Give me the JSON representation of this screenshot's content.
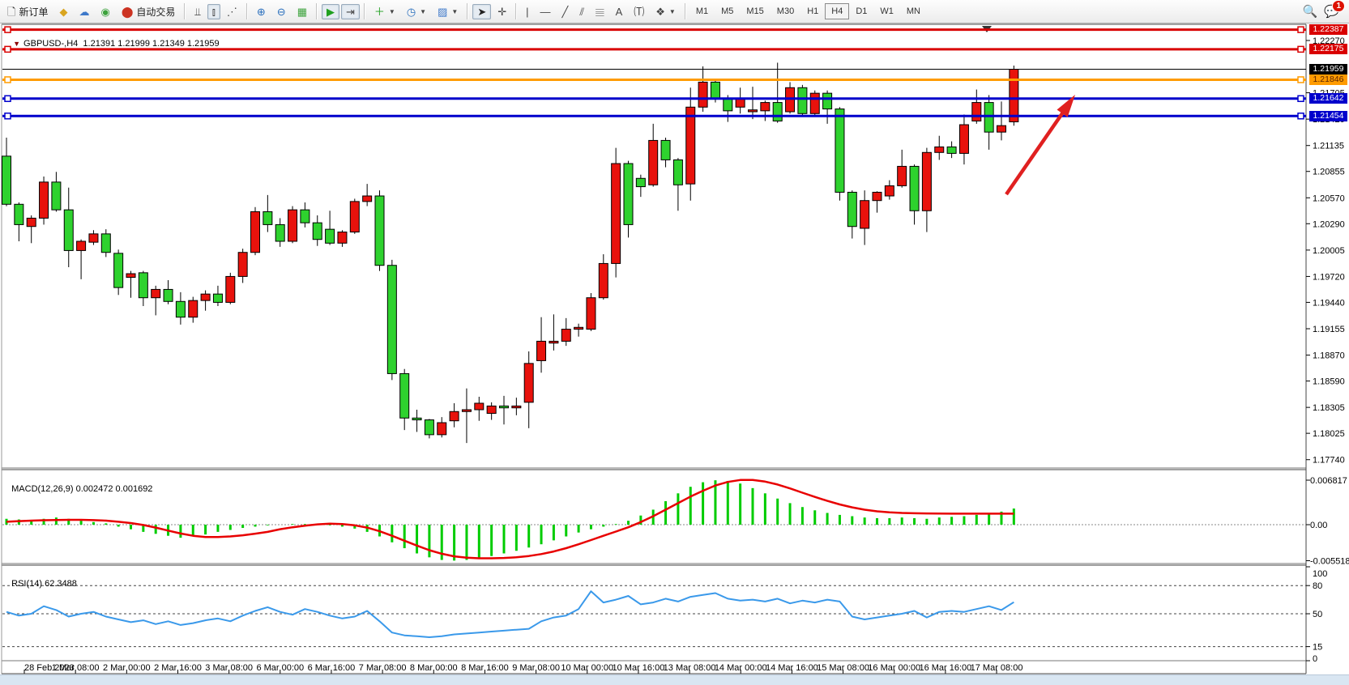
{
  "toolbar": {
    "new_order_label": "新订单",
    "auto_trading_label": "自动交易",
    "buttons": [
      {
        "name": "new-order-button",
        "icon": "order-ticket-icon",
        "label": "新订单"
      },
      {
        "name": "gold-button",
        "icon": "gold-nugget-icon"
      },
      {
        "name": "contacts-button",
        "icon": "contacts-icon"
      },
      {
        "name": "signal-button",
        "icon": "signal-icon"
      },
      {
        "name": "auto-trading-button",
        "icon": "autotrade-icon",
        "label": "自动交易"
      },
      {
        "sep": true
      },
      {
        "name": "bar-chart-button",
        "icon": "bar-chart-icon"
      },
      {
        "name": "candlestick-chart-button",
        "icon": "candlestick-chart-icon",
        "pressed": true
      },
      {
        "name": "line-chart-button",
        "icon": "line-chart-icon"
      },
      {
        "sep": true
      },
      {
        "name": "zoom-in-button",
        "icon": "zoom-in-icon"
      },
      {
        "name": "zoom-out-button",
        "icon": "zoom-out-icon"
      },
      {
        "name": "tile-windows-button",
        "icon": "tile-windows-icon"
      },
      {
        "sep": true
      },
      {
        "name": "auto-scroll-button",
        "icon": "auto-scroll-icon",
        "pressed": true
      },
      {
        "name": "chart-shift-button",
        "icon": "chart-shift-icon",
        "pressed": true
      },
      {
        "sep": true
      },
      {
        "name": "indicators-button",
        "icon": "indicator-add-icon",
        "caret": true
      },
      {
        "name": "periods-button",
        "icon": "clock-icon",
        "caret": true
      },
      {
        "name": "templates-button",
        "icon": "template-icon",
        "caret": true
      },
      {
        "sep": true
      },
      {
        "name": "cursor-button",
        "icon": "cursor-icon",
        "pressed": true
      },
      {
        "name": "crosshair-button",
        "icon": "crosshair-icon"
      },
      {
        "sep": true
      },
      {
        "name": "vertical-line-button",
        "icon": "vertical-line-icon"
      },
      {
        "name": "horizontal-line-button",
        "icon": "horizontal-line-icon"
      },
      {
        "name": "trendline-button",
        "icon": "trendline-icon"
      },
      {
        "name": "equidistant-channel-button",
        "icon": "channel-icon"
      },
      {
        "name": "fibonacci-button",
        "icon": "fibonacci-icon"
      },
      {
        "name": "text-button",
        "icon": "text-icon"
      },
      {
        "name": "text-label-button",
        "icon": "text-label-icon"
      },
      {
        "name": "arrows-button",
        "icon": "shapes-icon",
        "caret": true
      },
      {
        "sep": true
      }
    ],
    "timeframes": [
      "M1",
      "M5",
      "M15",
      "M30",
      "H1",
      "H4",
      "D1",
      "W1",
      "MN"
    ],
    "timeframe_selected": "H4",
    "notification_count": "1"
  },
  "chart": {
    "symbol_period": "GBPUSD-,H4",
    "ohlc_text": "1.21391 1.21999 1.21349 1.21959",
    "macd_name": "MACD(12,26,9)",
    "macd_values": "0.002472 0.001692",
    "rsi_name": "RSI(14)",
    "rsi_value": "62.3488"
  },
  "price_axis": {
    "ticks": [
      "1.22270",
      "1.21705",
      "1.21420",
      "1.21135",
      "1.20855",
      "1.20570",
      "1.20290",
      "1.20005",
      "1.19720",
      "1.19440",
      "1.19155",
      "1.18870",
      "1.18590",
      "1.18305",
      "1.18025",
      "1.17740"
    ],
    "badges": [
      {
        "label": "1.22387",
        "price": 1.22387,
        "bg": "#d90000",
        "fg": "#ffffff"
      },
      {
        "label": "1.22175",
        "price": 1.22175,
        "bg": "#d90000",
        "fg": "#ffffff"
      },
      {
        "label": "1.21959",
        "price": 1.21959,
        "bg": "#000000",
        "fg": "#ffffff"
      },
      {
        "label": "1.21846",
        "price": 1.21846,
        "bg": "#ff9b00",
        "fg": "#5a2400"
      },
      {
        "label": "1.21642",
        "price": 1.21642,
        "bg": "#0000cc",
        "fg": "#ffffff"
      },
      {
        "label": "1.21454",
        "price": 1.21454,
        "bg": "#0000cc",
        "fg": "#ffffff"
      }
    ]
  },
  "macd_axis": {
    "ticks": [
      {
        "label": "0.006817",
        "v": 0.006817
      },
      {
        "label": "0.00",
        "v": 0.0
      },
      {
        "label": "-0.005518",
        "v": -0.005518
      }
    ]
  },
  "rsi_axis": {
    "ticks": [
      {
        "label": "100",
        "v": 100
      },
      {
        "label": "80",
        "v": 80
      },
      {
        "label": "50",
        "v": 50
      },
      {
        "label": "15",
        "v": 15
      },
      {
        "label": "0",
        "v": 0
      }
    ],
    "levels": [
      80,
      50,
      15
    ]
  },
  "time_axis": [
    "28 Feb 2023",
    "1 Mar 08:00",
    "2 Mar 00:00",
    "2 Mar 16:00",
    "3 Mar 08:00",
    "6 Mar 00:00",
    "6 Mar 16:00",
    "7 Mar 08:00",
    "8 Mar 00:00",
    "8 Mar 16:00",
    "9 Mar 08:00",
    "10 Mar 00:00",
    "10 Mar 16:00",
    "13 Mar 08:00",
    "14 Mar 00:00",
    "14 Mar 16:00",
    "15 Mar 08:00",
    "16 Mar 00:00",
    "16 Mar 16:00",
    "17 Mar 08:00"
  ],
  "colors": {
    "bull": "#e8120c",
    "bear": "#2ed22e",
    "wick": "#000000",
    "red_line": "#d90000",
    "orange_line": "#ff9b00",
    "blue_line": "#0000cc",
    "bid_line": "#000000",
    "macd_hist": "#00cc00",
    "macd_signal": "#e80000",
    "rsi_line": "#3a99ea",
    "arrow": "#e02020"
  },
  "chart_data": {
    "type": "candlestick",
    "symbol": "GBPUSD-",
    "period": "H4",
    "ylim": [
      1.1774,
      1.2239
    ],
    "grid": false,
    "candles": [
      [
        1.2102,
        1.2122,
        1.2048,
        1.205
      ],
      [
        1.205,
        1.2052,
        1.201,
        1.2028
      ],
      [
        1.2026,
        1.2038,
        1.2008,
        1.2035
      ],
      [
        1.2035,
        1.208,
        1.2028,
        1.2074
      ],
      [
        1.2074,
        1.2085,
        1.2042,
        1.2044
      ],
      [
        1.2044,
        1.2068,
        1.1982,
        1.2
      ],
      [
        1.2,
        1.2012,
        1.1969,
        1.201
      ],
      [
        1.2009,
        1.2022,
        1.2006,
        1.2018
      ],
      [
        1.2018,
        1.2023,
        1.1993,
        1.1998
      ],
      [
        1.1997,
        1.2001,
        1.1952,
        1.196
      ],
      [
        1.1971,
        1.1978,
        1.1949,
        1.1975
      ],
      [
        1.1976,
        1.1978,
        1.194,
        1.1949
      ],
      [
        1.1949,
        1.1962,
        1.193,
        1.1958
      ],
      [
        1.1958,
        1.1968,
        1.1942,
        1.1945
      ],
      [
        1.1945,
        1.1955,
        1.192,
        1.1928
      ],
      [
        1.1928,
        1.195,
        1.1922,
        1.1946
      ],
      [
        1.1946,
        1.1957,
        1.1935,
        1.1953
      ],
      [
        1.1953,
        1.1962,
        1.194,
        1.1944
      ],
      [
        1.1944,
        1.1976,
        1.1942,
        1.1972
      ],
      [
        1.1972,
        1.2002,
        1.1965,
        1.1998
      ],
      [
        1.1998,
        1.2047,
        1.1995,
        1.2042
      ],
      [
        1.2042,
        1.206,
        1.202,
        1.2028
      ],
      [
        1.2028,
        1.2035,
        1.2004,
        1.201
      ],
      [
        1.201,
        1.2048,
        1.2008,
        1.2044
      ],
      [
        1.2044,
        1.2052,
        1.2025,
        1.203
      ],
      [
        1.203,
        1.2038,
        1.2005,
        1.2012
      ],
      [
        1.2023,
        1.2043,
        1.2006,
        1.2008
      ],
      [
        1.2008,
        1.2022,
        1.2004,
        1.202
      ],
      [
        1.202,
        1.2056,
        1.2018,
        1.2053
      ],
      [
        1.2053,
        1.2072,
        1.2048,
        1.2059
      ],
      [
        1.2059,
        1.2065,
        1.1978,
        1.1984
      ],
      [
        1.1984,
        1.199,
        1.186,
        1.1867
      ],
      [
        1.1867,
        1.1872,
        1.1806,
        1.1819
      ],
      [
        1.1819,
        1.1828,
        1.1804,
        1.1817
      ],
      [
        1.1817,
        1.1818,
        1.1797,
        1.1801
      ],
      [
        1.1801,
        1.182,
        1.1798,
        1.1814
      ],
      [
        1.1816,
        1.1835,
        1.1809,
        1.1826
      ],
      [
        1.1826,
        1.1851,
        1.1792,
        1.1828
      ],
      [
        1.1828,
        1.1842,
        1.1816,
        1.1835
      ],
      [
        1.1824,
        1.1836,
        1.1817,
        1.1832
      ],
      [
        1.1832,
        1.1843,
        1.1812,
        1.183
      ],
      [
        1.183,
        1.1841,
        1.1822,
        1.1832
      ],
      [
        1.1836,
        1.1891,
        1.1808,
        1.1878
      ],
      [
        1.1881,
        1.1928,
        1.1868,
        1.1902
      ],
      [
        1.19,
        1.1931,
        1.1892,
        1.1902
      ],
      [
        1.1902,
        1.1927,
        1.1897,
        1.1915
      ],
      [
        1.1915,
        1.1921,
        1.1907,
        1.1917
      ],
      [
        1.1915,
        1.1954,
        1.1913,
        1.1949
      ],
      [
        1.1949,
        1.1996,
        1.1947,
        1.1986
      ],
      [
        1.1986,
        1.2111,
        1.1971,
        1.2094
      ],
      [
        1.2094,
        1.2097,
        1.2014,
        1.2028
      ],
      [
        1.2078,
        1.2082,
        1.2058,
        1.2069
      ],
      [
        1.2071,
        1.2137,
        1.2069,
        1.2119
      ],
      [
        1.2119,
        1.2122,
        1.209,
        1.2098
      ],
      [
        1.2098,
        1.21,
        1.2043,
        1.2071
      ],
      [
        1.2072,
        1.2176,
        1.2054,
        1.2155
      ],
      [
        1.2155,
        1.2199,
        1.215,
        1.2182
      ],
      [
        1.2182,
        1.2185,
        1.216,
        1.2164
      ],
      [
        1.2164,
        1.2168,
        1.2139,
        1.2151
      ],
      [
        1.2155,
        1.2176,
        1.2148,
        1.2164
      ],
      [
        1.215,
        1.2177,
        1.2142,
        1.2152
      ],
      [
        1.2151,
        1.2162,
        1.214,
        1.216
      ],
      [
        1.216,
        1.2203,
        1.2138,
        1.214
      ],
      [
        1.215,
        1.2182,
        1.2148,
        1.2176
      ],
      [
        1.2176,
        1.2179,
        1.2146,
        1.2148
      ],
      [
        1.2148,
        1.2173,
        1.2145,
        1.217
      ],
      [
        1.217,
        1.2173,
        1.2137,
        1.2153
      ],
      [
        1.2153,
        1.2155,
        1.2054,
        1.2063
      ],
      [
        1.2063,
        1.2065,
        1.2013,
        1.2026
      ],
      [
        1.2024,
        1.2065,
        1.2006,
        1.2054
      ],
      [
        1.2054,
        1.2064,
        1.2041,
        1.2063
      ],
      [
        1.2059,
        1.2076,
        1.2055,
        1.207
      ],
      [
        1.207,
        1.2109,
        1.2068,
        1.2091
      ],
      [
        1.2091,
        1.2093,
        1.2028,
        1.2043
      ],
      [
        1.2043,
        1.2111,
        1.202,
        1.2106
      ],
      [
        1.2106,
        1.2124,
        1.2098,
        1.2112
      ],
      [
        1.2112,
        1.2118,
        1.21,
        1.2105
      ],
      [
        1.2105,
        1.2147,
        1.2093,
        1.2136
      ],
      [
        1.214,
        1.2174,
        1.2137,
        1.216
      ],
      [
        1.216,
        1.2168,
        1.2109,
        1.2128
      ],
      [
        1.2128,
        1.2161,
        1.2119,
        1.2135
      ],
      [
        1.21391,
        1.21999,
        1.21349,
        1.21959
      ]
    ],
    "horizontal_lines": [
      {
        "price": 1.22387,
        "color": "red",
        "width": 3
      },
      {
        "price": 1.22175,
        "color": "red",
        "width": 3
      },
      {
        "price": 1.21846,
        "color": "orange",
        "width": 3
      },
      {
        "price": 1.21642,
        "color": "blue",
        "width": 3
      },
      {
        "price": 1.21454,
        "color": "blue",
        "width": 3
      }
    ],
    "bid_price": 1.21959,
    "macd": {
      "params": [
        12,
        26,
        9
      ],
      "value": 0.002472,
      "signal_value": 0.001692,
      "ylim": [
        -0.005518,
        0.006817
      ],
      "histogram": [
        0.0009,
        0.0008,
        0.0007,
        0.0009,
        0.0011,
        0.0009,
        0.0006,
        0.0004,
        0.0002,
        -0.0003,
        -0.0007,
        -0.0011,
        -0.0014,
        -0.0017,
        -0.002,
        -0.0018,
        -0.0015,
        -0.0011,
        -0.0008,
        -0.0005,
        -0.0003,
        -0.0001,
        0.0,
        0.0001,
        0.0001,
        0.0,
        -0.0001,
        -0.0003,
        -0.0006,
        -0.0011,
        -0.0018,
        -0.0027,
        -0.0036,
        -0.0044,
        -0.005,
        -0.0054,
        -0.0055,
        -0.0054,
        -0.0051,
        -0.0048,
        -0.0044,
        -0.004,
        -0.0035,
        -0.003,
        -0.0024,
        -0.0018,
        -0.0012,
        -0.0007,
        -0.0003,
        0.0001,
        0.0006,
        0.0014,
        0.0023,
        0.0036,
        0.0048,
        0.0058,
        0.0065,
        0.0068,
        0.0067,
        0.0063,
        0.0056,
        0.0048,
        0.004,
        0.0033,
        0.0027,
        0.0022,
        0.0018,
        0.0015,
        0.0013,
        0.0011,
        0.001,
        0.001,
        0.0011,
        0.001,
        0.0009,
        0.0011,
        0.0012,
        0.0013,
        0.0015,
        0.0017,
        0.002,
        0.002472
      ],
      "signal": [
        0.00045,
        0.00055,
        0.00062,
        0.00068,
        0.00072,
        0.00075,
        0.00074,
        0.0007,
        0.00062,
        0.00045,
        0.00025,
        -5e-05,
        -0.00045,
        -0.0009,
        -0.00135,
        -0.0017,
        -0.00188,
        -0.0019,
        -0.0018,
        -0.00162,
        -0.00138,
        -0.0011,
        -0.0007,
        -0.0004,
        -0.00015,
        5e-05,
        0.00015,
        0.0001,
        -0.0001,
        -0.00045,
        -0.001,
        -0.0017,
        -0.00245,
        -0.0032,
        -0.0039,
        -0.00445,
        -0.00485,
        -0.00505,
        -0.00515,
        -0.00515,
        -0.0051,
        -0.005,
        -0.0048,
        -0.0045,
        -0.0041,
        -0.0036,
        -0.003,
        -0.00235,
        -0.0017,
        -0.00105,
        -0.0004,
        0.0004,
        0.0013,
        0.0023,
        0.0033,
        0.0043,
        0.0052,
        0.006,
        0.00655,
        0.00685,
        0.00685,
        0.0066,
        0.00615,
        0.00555,
        0.0049,
        0.00425,
        0.00365,
        0.0031,
        0.00265,
        0.0023,
        0.00205,
        0.0019,
        0.0018,
        0.00175,
        0.00172,
        0.0017,
        0.00169,
        0.00169,
        0.00169,
        0.00169,
        0.00169,
        0.00169
      ]
    },
    "rsi": {
      "period": 14,
      "value": 62.3488,
      "ylim": [
        0,
        100
      ],
      "values": [
        52,
        48,
        50,
        58,
        54,
        47,
        50,
        52,
        47,
        44,
        41,
        43,
        39,
        42,
        38,
        40,
        43,
        45,
        42,
        48,
        53,
        57,
        52,
        49,
        55,
        52,
        48,
        45,
        47,
        53,
        42,
        30,
        27,
        26,
        25,
        26,
        28,
        29,
        30,
        31,
        32,
        33,
        34,
        42,
        46,
        48,
        55,
        74,
        62,
        65,
        69,
        60,
        62,
        66,
        63,
        68,
        70,
        72,
        66,
        64,
        65,
        63,
        66,
        61,
        64,
        62,
        65,
        63,
        47,
        44,
        46,
        48,
        50,
        53,
        46,
        52,
        53,
        52,
        55,
        58,
        54,
        62.35
      ]
    },
    "annotations": [
      {
        "type": "arrow",
        "from_xy": [
          1242,
          240
        ],
        "to_xy": [
          1327,
          117
        ],
        "color": "#e02020"
      }
    ]
  }
}
